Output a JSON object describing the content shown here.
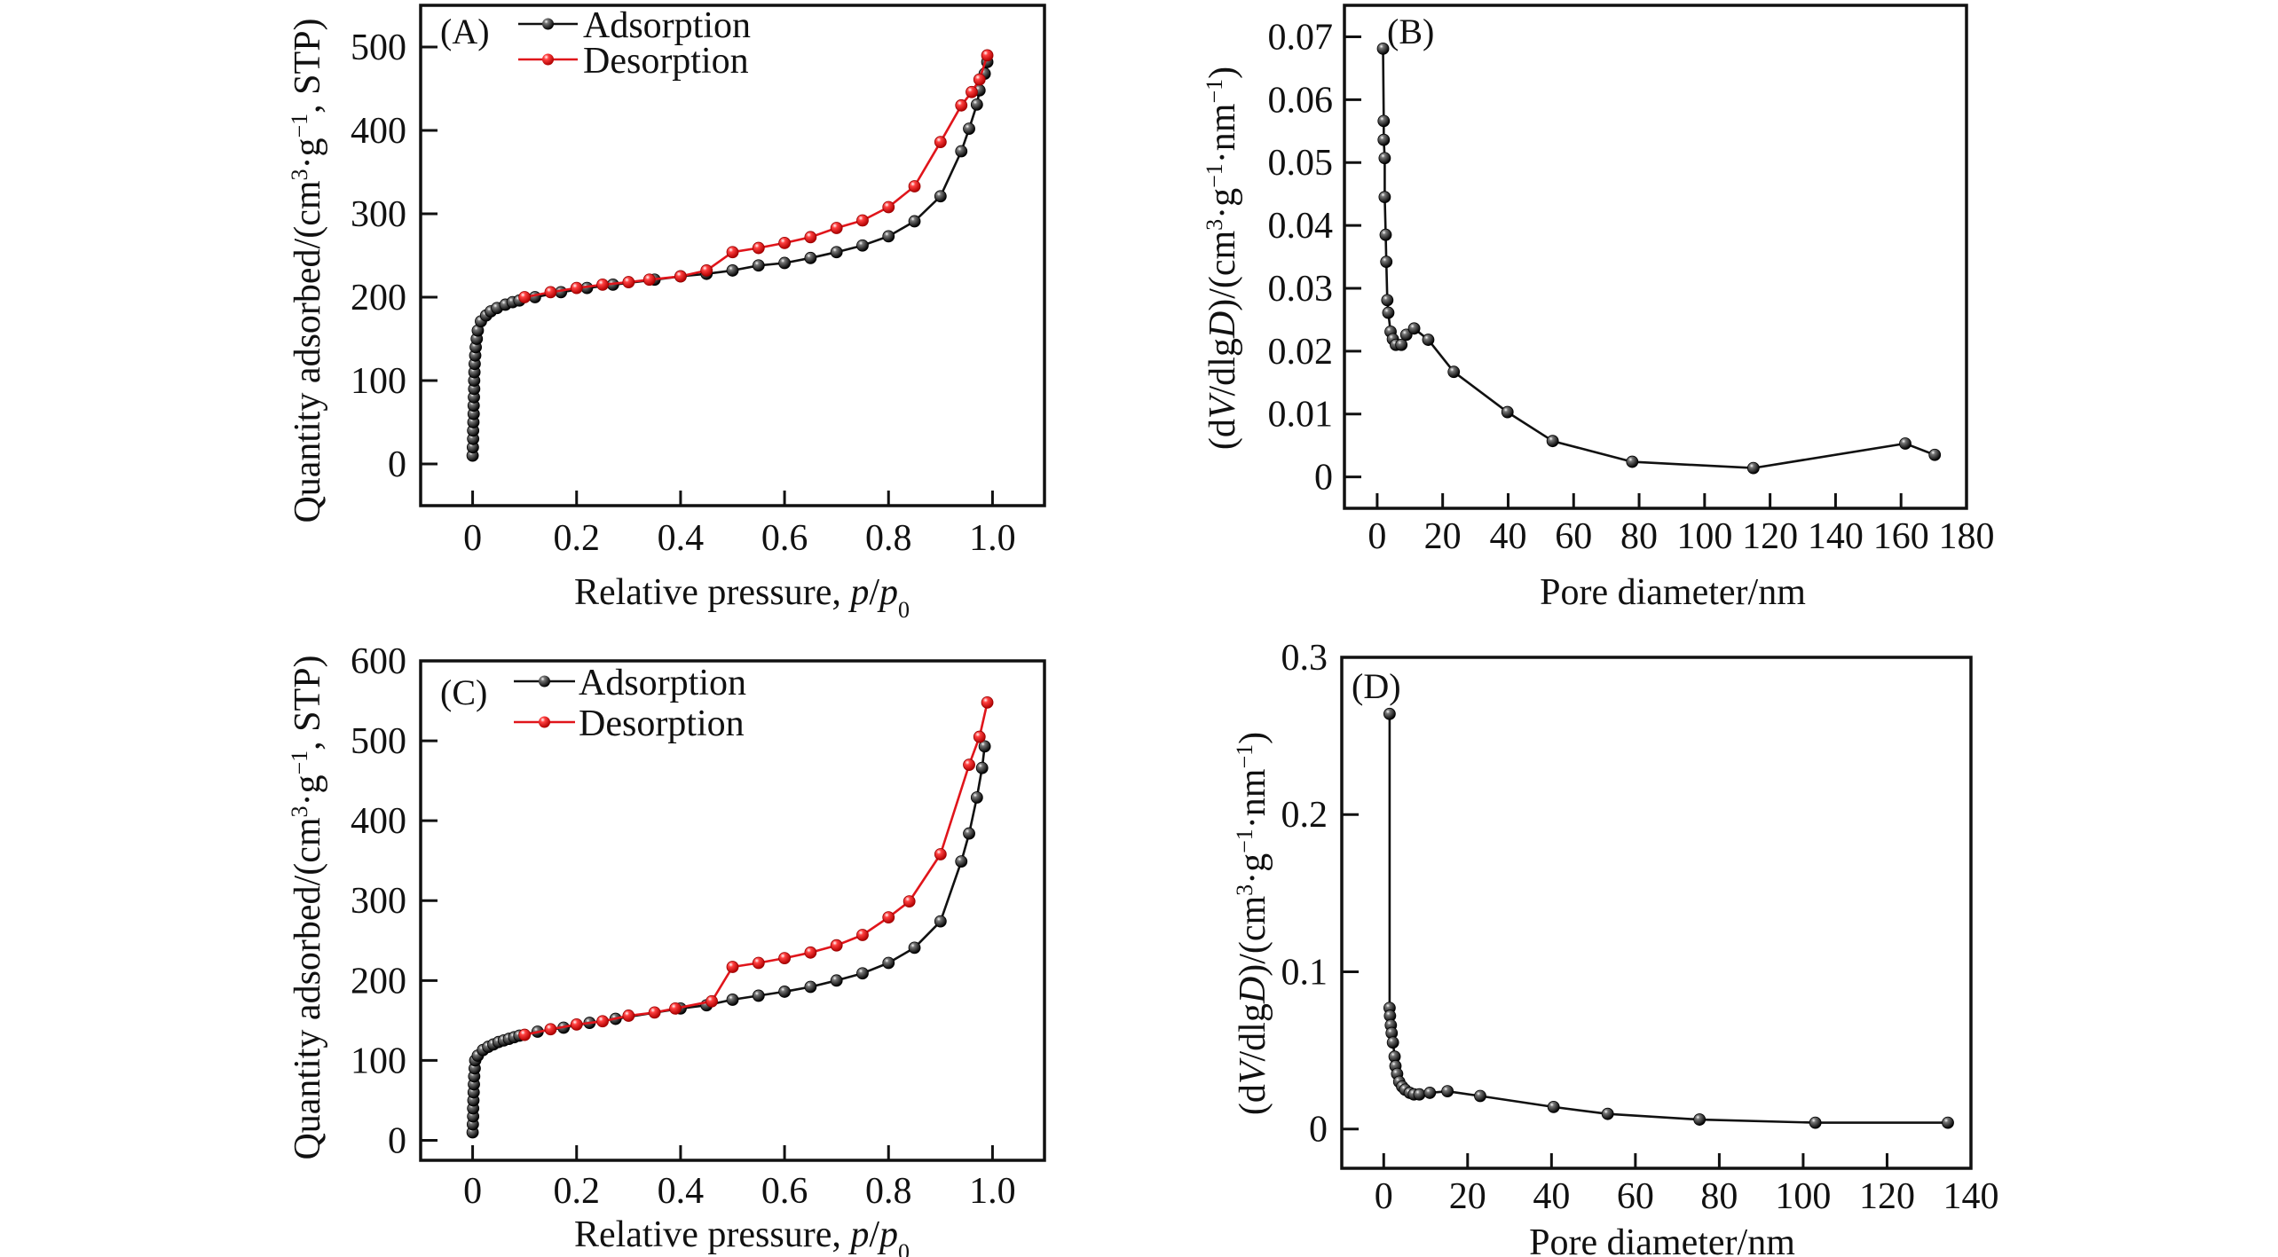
{
  "chart_data": [
    {
      "panel": "(A)",
      "type": "line",
      "xlabel": [
        {
          "text": "Relative pressure, ",
          "fmt": ""
        },
        {
          "text": "p",
          "fmt": "i"
        },
        {
          "text": "/",
          "fmt": ""
        },
        {
          "text": "p",
          "fmt": "i"
        },
        {
          "text": "0",
          "fmt": "sub"
        }
      ],
      "ylabel": [
        {
          "text": "Quantity adsorbed/(cm",
          "fmt": ""
        },
        {
          "text": "3",
          "fmt": "sup"
        },
        {
          "text": "·g",
          "fmt": ""
        },
        {
          "text": "−1",
          "fmt": "sup"
        },
        {
          "text": ", STP)",
          "fmt": ""
        }
      ],
      "xlim": [
        -0.1,
        1.1
      ],
      "ylim": [
        -50,
        550
      ],
      "x_ticks": [
        0,
        0.2,
        0.4,
        0.6,
        0.8,
        1.0
      ],
      "x_tick_labels": [
        "0",
        "0.2",
        "0.4",
        "0.6",
        "0.8",
        "1.0"
      ],
      "y_ticks": [
        0,
        100,
        200,
        300,
        400,
        500
      ],
      "y_tick_labels": [
        "0",
        "100",
        "200",
        "300",
        "400",
        "500"
      ],
      "grid": false,
      "legend": "top-left",
      "series": [
        {
          "name": "Adsorption",
          "color": "#111111",
          "points": [
            [
              0,
              10
            ],
            [
              0.0005,
              20
            ],
            [
              0.001,
              30
            ],
            [
              0.001,
              40
            ],
            [
              0.0015,
              50
            ],
            [
              0.002,
              60
            ],
            [
              0.002,
              70
            ],
            [
              0.0025,
              80
            ],
            [
              0.003,
              90
            ],
            [
              0.003,
              100
            ],
            [
              0.0035,
              110
            ],
            [
              0.004,
              120
            ],
            [
              0.005,
              130
            ],
            [
              0.006,
              140
            ],
            [
              0.008,
              150
            ],
            [
              0.01,
              160
            ],
            [
              0.016,
              171
            ],
            [
              0.026,
              178
            ],
            [
              0.035,
              183
            ],
            [
              0.047,
              187
            ],
            [
              0.063,
              191
            ],
            [
              0.077,
              194
            ],
            [
              0.09,
              196
            ],
            [
              0.12,
              200
            ],
            [
              0.17,
              206
            ],
            [
              0.22,
              211
            ],
            [
              0.27,
              215
            ],
            [
              0.35,
              221
            ],
            [
              0.4,
              225
            ],
            [
              0.45,
              228
            ],
            [
              0.5,
              232
            ],
            [
              0.55,
              238
            ],
            [
              0.6,
              241
            ],
            [
              0.65,
              247
            ],
            [
              0.7,
              254
            ],
            [
              0.75,
              262
            ],
            [
              0.8,
              273
            ],
            [
              0.85,
              291
            ],
            [
              0.9,
              321
            ],
            [
              0.94,
              375
            ],
            [
              0.955,
              402
            ],
            [
              0.97,
              431
            ],
            [
              0.975,
              448
            ],
            [
              0.985,
              468
            ],
            [
              0.99,
              482
            ]
          ]
        },
        {
          "name": "Desorption",
          "color": "#e0151b",
          "points": [
            [
              0.99,
              490
            ],
            [
              0.975,
              461
            ],
            [
              0.96,
              446
            ],
            [
              0.94,
              430
            ],
            [
              0.9,
              386
            ],
            [
              0.85,
              333
            ],
            [
              0.8,
              308
            ],
            [
              0.75,
              292
            ],
            [
              0.7,
              283
            ],
            [
              0.65,
              272
            ],
            [
              0.6,
              265
            ],
            [
              0.55,
              259
            ],
            [
              0.5,
              254
            ],
            [
              0.45,
              232
            ],
            [
              0.4,
              225
            ],
            [
              0.34,
              221
            ],
            [
              0.3,
              218
            ],
            [
              0.25,
              215
            ],
            [
              0.2,
              211
            ],
            [
              0.15,
              206
            ],
            [
              0.1,
              200
            ]
          ]
        }
      ]
    },
    {
      "panel": "(B)",
      "type": "line",
      "xlabel": [
        {
          "text": "Pore diameter/nm",
          "fmt": ""
        }
      ],
      "ylabel": [
        {
          "text": "(d",
          "fmt": ""
        },
        {
          "text": "V",
          "fmt": "i"
        },
        {
          "text": "/dlg",
          "fmt": ""
        },
        {
          "text": "D",
          "fmt": "i"
        },
        {
          "text": ")/(cm",
          "fmt": ""
        },
        {
          "text": "3",
          "fmt": "sup"
        },
        {
          "text": "·g",
          "fmt": ""
        },
        {
          "text": "−1",
          "fmt": "sup"
        },
        {
          "text": "·nm",
          "fmt": ""
        },
        {
          "text": "−1",
          "fmt": "sup"
        },
        {
          "text": ")",
          "fmt": ""
        }
      ],
      "xlim": [
        -10,
        180
      ],
      "ylim": [
        -0.005,
        0.075
      ],
      "x_ticks": [
        0,
        20,
        40,
        60,
        80,
        100,
        120,
        140,
        160,
        180
      ],
      "x_tick_labels": [
        "0",
        "20",
        "40",
        "60",
        "80",
        "100",
        "120",
        "140",
        "160",
        "180"
      ],
      "y_ticks": [
        0,
        0.01,
        0.02,
        0.03,
        0.04,
        0.05,
        0.06,
        0.07
      ],
      "y_tick_labels": [
        "0",
        "0.01",
        "0.02",
        "0.03",
        "0.04",
        "0.05",
        "0.06",
        "0.07"
      ],
      "grid": false,
      "series": [
        {
          "color": "#111111",
          "points": [
            [
              1.8,
              0.0681
            ],
            [
              2.0,
              0.0566
            ],
            [
              2.0,
              0.0536
            ],
            [
              2.3,
              0.0507
            ],
            [
              2.3,
              0.0445
            ],
            [
              2.6,
              0.0385
            ],
            [
              2.8,
              0.0342
            ],
            [
              3.1,
              0.0281
            ],
            [
              3.4,
              0.0261
            ],
            [
              4.1,
              0.0231
            ],
            [
              4.8,
              0.0219
            ],
            [
              5.7,
              0.021
            ],
            [
              7.4,
              0.021
            ],
            [
              8.9,
              0.0226
            ],
            [
              11.3,
              0.0236
            ],
            [
              15.6,
              0.0218
            ],
            [
              23.4,
              0.0167
            ],
            [
              39.8,
              0.0103
            ],
            [
              53.6,
              0.0057
            ],
            [
              77.9,
              0.0024
            ],
            [
              114.9,
              0.0014
            ],
            [
              161.3,
              0.0053
            ],
            [
              170.3,
              0.0035
            ]
          ]
        }
      ]
    },
    {
      "panel": "(C)",
      "type": "line",
      "xlabel": [
        {
          "text": "Relative pressure, ",
          "fmt": ""
        },
        {
          "text": "p",
          "fmt": "i"
        },
        {
          "text": "/",
          "fmt": ""
        },
        {
          "text": "p",
          "fmt": "i"
        },
        {
          "text": "0",
          "fmt": "sub"
        }
      ],
      "ylabel": [
        {
          "text": "Quantity adsorbed/(cm",
          "fmt": ""
        },
        {
          "text": "3",
          "fmt": "sup"
        },
        {
          "text": "·g",
          "fmt": ""
        },
        {
          "text": "−1",
          "fmt": "sup"
        },
        {
          "text": ", STP)",
          "fmt": ""
        }
      ],
      "xlim": [
        -0.1,
        1.1
      ],
      "ylim": [
        -25,
        600
      ],
      "x_ticks": [
        0,
        0.2,
        0.4,
        0.6,
        0.8,
        1.0
      ],
      "x_tick_labels": [
        "0",
        "0.2",
        "0.4",
        "0.6",
        "0.8",
        "1.0"
      ],
      "y_ticks": [
        0,
        100,
        200,
        300,
        400,
        500,
        600
      ],
      "y_tick_labels": [
        "0",
        "100",
        "200",
        "300",
        "400",
        "500",
        "600"
      ],
      "grid": false,
      "legend": "top-left",
      "series": [
        {
          "name": "Adsorption",
          "color": "#111111",
          "points": [
            [
              0,
              10
            ],
            [
              0.0005,
              20
            ],
            [
              0.001,
              30
            ],
            [
              0.001,
              40
            ],
            [
              0.0015,
              50
            ],
            [
              0.002,
              60
            ],
            [
              0.0025,
              70
            ],
            [
              0.003,
              80
            ],
            [
              0.004,
              90
            ],
            [
              0.005,
              100
            ],
            [
              0.01,
              106
            ],
            [
              0.02,
              113
            ],
            [
              0.03,
              117
            ],
            [
              0.04,
              120
            ],
            [
              0.05,
              123
            ],
            [
              0.06,
              125
            ],
            [
              0.07,
              127
            ],
            [
              0.08,
              129
            ],
            [
              0.09,
              131
            ],
            [
              0.125,
              136
            ],
            [
              0.175,
              141
            ],
            [
              0.225,
              147
            ],
            [
              0.275,
              152
            ],
            [
              0.4,
              165
            ],
            [
              0.45,
              169
            ],
            [
              0.5,
              176
            ],
            [
              0.55,
              181
            ],
            [
              0.6,
              186
            ],
            [
              0.65,
              192
            ],
            [
              0.7,
              200
            ],
            [
              0.75,
              209
            ],
            [
              0.8,
              222
            ],
            [
              0.85,
              241
            ],
            [
              0.9,
              274
            ],
            [
              0.94,
              349
            ],
            [
              0.955,
              384
            ],
            [
              0.97,
              429
            ],
            [
              0.98,
              466
            ],
            [
              0.985,
              493
            ]
          ]
        },
        {
          "name": "Desorption",
          "color": "#e0151b",
          "points": [
            [
              0.99,
              548
            ],
            [
              0.975,
              505
            ],
            [
              0.955,
              470
            ],
            [
              0.9,
              358
            ],
            [
              0.84,
              299
            ],
            [
              0.8,
              279
            ],
            [
              0.75,
              257
            ],
            [
              0.7,
              244
            ],
            [
              0.65,
              235
            ],
            [
              0.6,
              228
            ],
            [
              0.55,
              222
            ],
            [
              0.5,
              217
            ],
            [
              0.46,
              174
            ],
            [
              0.39,
              165
            ],
            [
              0.35,
              160
            ],
            [
              0.3,
              156
            ],
            [
              0.25,
              149
            ],
            [
              0.2,
              145
            ],
            [
              0.15,
              139
            ],
            [
              0.1,
              132
            ]
          ]
        }
      ]
    },
    {
      "panel": "(D)",
      "type": "line",
      "xlabel": [
        {
          "text": "Pore diameter/nm",
          "fmt": ""
        }
      ],
      "ylabel": [
        {
          "text": "(d",
          "fmt": ""
        },
        {
          "text": "V",
          "fmt": "i"
        },
        {
          "text": "/dlg",
          "fmt": ""
        },
        {
          "text": "D",
          "fmt": "i"
        },
        {
          "text": ")/(cm",
          "fmt": ""
        },
        {
          "text": "3",
          "fmt": "sup"
        },
        {
          "text": "·g",
          "fmt": ""
        },
        {
          "text": "−1",
          "fmt": "sup"
        },
        {
          "text": "·nm",
          "fmt": ""
        },
        {
          "text": "−1",
          "fmt": "sup"
        },
        {
          "text": ")",
          "fmt": ""
        }
      ],
      "xlim": [
        -10,
        140
      ],
      "ylim": [
        -0.025,
        0.3
      ],
      "x_ticks": [
        0,
        20,
        40,
        60,
        80,
        100,
        120,
        140
      ],
      "x_tick_labels": [
        "0",
        "20",
        "40",
        "60",
        "80",
        "100",
        "120",
        "140"
      ],
      "y_ticks": [
        0,
        0.1,
        0.2,
        0.3
      ],
      "y_tick_labels": [
        "0",
        "0.1",
        "0.2",
        "0.3"
      ],
      "grid": false,
      "series": [
        {
          "color": "#111111",
          "points": [
            [
              1.4,
              0.264
            ],
            [
              1.4,
              0.077
            ],
            [
              1.5,
              0.072
            ],
            [
              1.7,
              0.066
            ],
            [
              1.9,
              0.061
            ],
            [
              2.2,
              0.055
            ],
            [
              2.6,
              0.046
            ],
            [
              2.8,
              0.04
            ],
            [
              3.2,
              0.035
            ],
            [
              3.7,
              0.03
            ],
            [
              4.4,
              0.027
            ],
            [
              5.1,
              0.025
            ],
            [
              6.2,
              0.023
            ],
            [
              7.2,
              0.022
            ],
            [
              8.5,
              0.022
            ],
            [
              11.0,
              0.023
            ],
            [
              15.2,
              0.024
            ],
            [
              23.0,
              0.021
            ],
            [
              40.5,
              0.014
            ],
            [
              53.4,
              0.0096
            ],
            [
              75.3,
              0.006
            ],
            [
              102.9,
              0.004
            ],
            [
              134.5,
              0.004
            ]
          ]
        }
      ]
    }
  ]
}
